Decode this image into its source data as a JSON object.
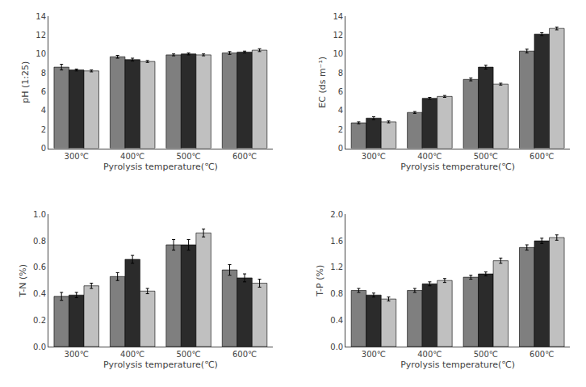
{
  "chart_data": [
    {
      "type": "bar",
      "categories": [
        "300℃",
        "400℃",
        "500℃",
        "600℃"
      ],
      "xlabel": "Pyrolysis temperature(℃)",
      "ylabel": "pH (1:25)",
      "ylim": [
        0,
        14
      ],
      "yticks": [
        0,
        2,
        4,
        6,
        8,
        10,
        12,
        14
      ],
      "grid": false,
      "series": [
        {
          "color": "#7f7f7f",
          "values": [
            8.6,
            9.7,
            9.9,
            10.1
          ],
          "errors": [
            0.3,
            0.15,
            0.1,
            0.15
          ]
        },
        {
          "color": "#2b2b2b",
          "values": [
            8.3,
            9.4,
            10.0,
            10.2
          ],
          "errors": [
            0.1,
            0.15,
            0.1,
            0.1
          ]
        },
        {
          "color": "#c0c0c0",
          "values": [
            8.2,
            9.2,
            9.9,
            10.4
          ],
          "errors": [
            0.1,
            0.1,
            0.1,
            0.15
          ]
        }
      ]
    },
    {
      "type": "bar",
      "categories": [
        "300℃",
        "400℃",
        "500℃",
        "600℃"
      ],
      "xlabel": "Pyrolysis temperature(℃)",
      "ylabel": "EC (ds m⁻¹)",
      "ylim": [
        0,
        14
      ],
      "yticks": [
        0,
        2,
        4,
        6,
        8,
        10,
        12,
        14
      ],
      "grid": false,
      "series": [
        {
          "color": "#7f7f7f",
          "values": [
            2.7,
            3.8,
            7.3,
            10.3
          ],
          "errors": [
            0.1,
            0.1,
            0.15,
            0.2
          ]
        },
        {
          "color": "#2b2b2b",
          "values": [
            3.2,
            5.3,
            8.6,
            12.1
          ],
          "errors": [
            0.15,
            0.1,
            0.2,
            0.15
          ]
        },
        {
          "color": "#c0c0c0",
          "values": [
            2.8,
            5.5,
            6.8,
            12.7
          ],
          "errors": [
            0.1,
            0.1,
            0.1,
            0.15
          ]
        }
      ]
    },
    {
      "type": "bar",
      "categories": [
        "300℃",
        "400℃",
        "500℃",
        "600℃"
      ],
      "xlabel": "Pyrolysis temperature(℃)",
      "ylabel": "T-N (%)",
      "ylim": [
        0,
        1.0
      ],
      "yticks": [
        {
          "value": 0,
          "label": "0.0"
        },
        0.2,
        0.4,
        0.6,
        0.8,
        {
          "value": 1.0,
          "label": "1.0"
        }
      ],
      "grid": false,
      "series": [
        {
          "color": "#7f7f7f",
          "values": [
            0.38,
            0.53,
            0.77,
            0.58
          ],
          "errors": [
            0.03,
            0.03,
            0.04,
            0.04
          ]
        },
        {
          "color": "#2b2b2b",
          "values": [
            0.39,
            0.66,
            0.77,
            0.52
          ],
          "errors": [
            0.02,
            0.03,
            0.04,
            0.03
          ]
        },
        {
          "color": "#c0c0c0",
          "values": [
            0.46,
            0.42,
            0.86,
            0.48
          ],
          "errors": [
            0.02,
            0.02,
            0.03,
            0.03
          ]
        }
      ]
    },
    {
      "type": "bar",
      "categories": [
        "300℃",
        "400℃",
        "500℃",
        "600℃"
      ],
      "xlabel": "Pyrolysis temperature(℃)",
      "ylabel": "T-P (%)",
      "ylim": [
        0,
        2.0
      ],
      "yticks": [
        {
          "value": 0,
          "label": "0.0"
        },
        0.4,
        0.8,
        1.2,
        1.6,
        {
          "value": 2.0,
          "label": "2.0"
        }
      ],
      "grid": false,
      "series": [
        {
          "color": "#7f7f7f",
          "values": [
            0.85,
            0.85,
            1.05,
            1.5
          ],
          "errors": [
            0.03,
            0.03,
            0.03,
            0.04
          ]
        },
        {
          "color": "#2b2b2b",
          "values": [
            0.78,
            0.95,
            1.1,
            1.6
          ],
          "errors": [
            0.03,
            0.03,
            0.03,
            0.04
          ]
        },
        {
          "color": "#c0c0c0",
          "values": [
            0.72,
            1.0,
            1.3,
            1.65
          ],
          "errors": [
            0.03,
            0.03,
            0.04,
            0.04
          ]
        }
      ]
    }
  ]
}
